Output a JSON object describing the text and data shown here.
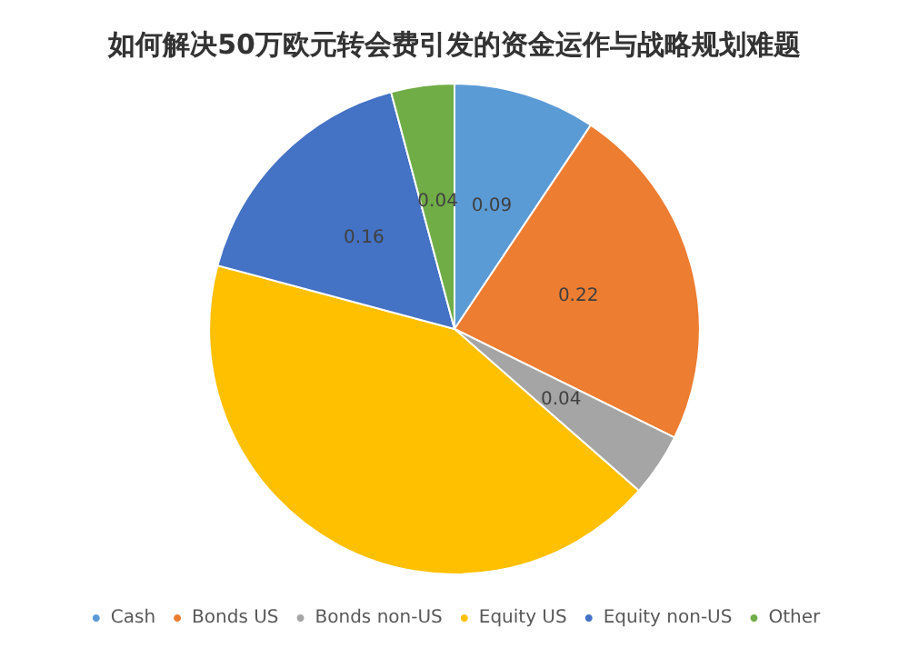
{
  "chart_data": {
    "type": "pie",
    "title": "如何解决50万欧元转会费引发的资金运作与战略规划难题",
    "categories": [
      "Cash",
      "Bonds US",
      "Bonds non-US",
      "Equity US",
      "Equity non-US",
      "Other"
    ],
    "values": [
      0.09,
      0.22,
      0.04,
      0.41,
      0.16,
      0.04
    ],
    "value_labels": [
      "0.09",
      "0.22",
      "0.04",
      null,
      "0.16",
      "0.04"
    ],
    "colors": [
      "#5b9bd5",
      "#ed7d31",
      "#a5a5a5",
      "#ffc000",
      "#4472c4",
      "#70ad47"
    ],
    "legend": "bottom"
  }
}
